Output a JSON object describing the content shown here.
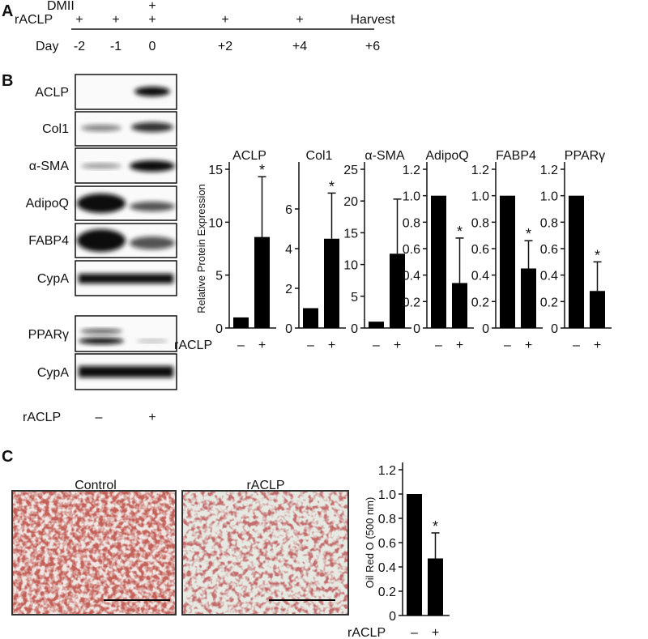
{
  "panel_a": {
    "label": "A",
    "dmii": "DMII",
    "raclp": "rACLP",
    "day": "Day",
    "dmii_marks": [
      "+"
    ],
    "raclp_marks": [
      "+",
      "+",
      "+",
      "+",
      "+"
    ],
    "days": [
      "-2",
      "-1",
      "0",
      "+2",
      "+4",
      "+6"
    ],
    "harvest": "Harvest"
  },
  "panel_b": {
    "label": "B",
    "blots": [
      "ACLP",
      "Col1",
      "α-SMA",
      "AdipoQ",
      "FABP4",
      "CypA",
      "PPARγ",
      "CypA"
    ],
    "treatment": "rACLP",
    "lanes": [
      "–",
      "+"
    ]
  },
  "panel_c": {
    "label": "C",
    "images": [
      "Control",
      "rACLP"
    ]
  },
  "chart_data": [
    {
      "type": "bar",
      "title": "ACLP",
      "y_label": "Relative Protein Expression",
      "x_label": "rACLP",
      "categories": [
        "–",
        "+"
      ],
      "values": [
        1,
        8.6
      ],
      "errors": [
        0,
        5.7
      ],
      "color": "#000000",
      "ylim": [
        0,
        15
      ],
      "yticks": [
        0,
        5,
        10,
        15
      ],
      "annotations": [
        {
          "category": "+",
          "text": "*"
        }
      ]
    },
    {
      "type": "bar",
      "title": "Col1",
      "categories": [
        "–",
        "+"
      ],
      "values": [
        1,
        4.5
      ],
      "errors": [
        0,
        2.3
      ],
      "color": "#000000",
      "ylim": [
        0,
        8
      ],
      "yticks": [
        0,
        2,
        4,
        6
      ],
      "annotations": [
        {
          "category": "+",
          "text": "*"
        }
      ]
    },
    {
      "type": "bar",
      "title": "α-SMA",
      "categories": [
        "–",
        "+"
      ],
      "values": [
        1,
        11.7
      ],
      "errors": [
        0,
        8.6
      ],
      "color": "#000000",
      "ylim": [
        0,
        25
      ],
      "yticks": [
        0,
        5,
        10,
        15,
        20,
        25
      ]
    },
    {
      "type": "bar",
      "title": "AdipoQ",
      "categories": [
        "–",
        "+"
      ],
      "values": [
        1,
        0.34
      ],
      "errors": [
        0,
        0.34
      ],
      "color": "#000000",
      "ylim": [
        0,
        1.2
      ],
      "yticks": [
        0,
        0.2,
        0.4,
        0.6,
        0.8,
        {
          "value": 1,
          "label": "1.0"
        },
        1.2
      ],
      "annotations": [
        {
          "category": "+",
          "text": "*"
        }
      ]
    },
    {
      "type": "bar",
      "title": "FABP4",
      "categories": [
        "–",
        "+"
      ],
      "values": [
        1,
        0.45
      ],
      "errors": [
        0,
        0.21
      ],
      "color": "#000000",
      "ylim": [
        0,
        1.2
      ],
      "yticks": [
        0,
        0.2,
        0.4,
        0.6,
        0.8,
        {
          "value": 1,
          "label": "1.0"
        },
        1.2
      ],
      "annotations": [
        {
          "category": "+",
          "text": "*"
        }
      ]
    },
    {
      "type": "bar",
      "title": "PPARγ",
      "categories": [
        "–",
        "+"
      ],
      "values": [
        1,
        0.28
      ],
      "errors": [
        0,
        0.22
      ],
      "color": "#000000",
      "ylim": [
        0,
        1.2
      ],
      "yticks": [
        0,
        0.2,
        0.4,
        0.6,
        0.8,
        {
          "value": 1,
          "label": "1.0"
        },
        1.2
      ],
      "annotations": [
        {
          "category": "+",
          "text": "*"
        }
      ]
    },
    {
      "type": "bar",
      "y_label": "Oil Red O (500 nm)",
      "x_label": "rACLP",
      "categories": [
        "–",
        "+"
      ],
      "values": [
        1,
        0.47
      ],
      "errors": [
        0,
        0.21
      ],
      "color": "#000000",
      "ylim": [
        0,
        1.2
      ],
      "yticks": [
        0,
        0.2,
        0.4,
        0.6,
        0.8,
        {
          "value": 1,
          "label": "1.0"
        },
        1.2
      ],
      "annotations": [
        {
          "category": "+",
          "text": "*"
        }
      ]
    }
  ]
}
